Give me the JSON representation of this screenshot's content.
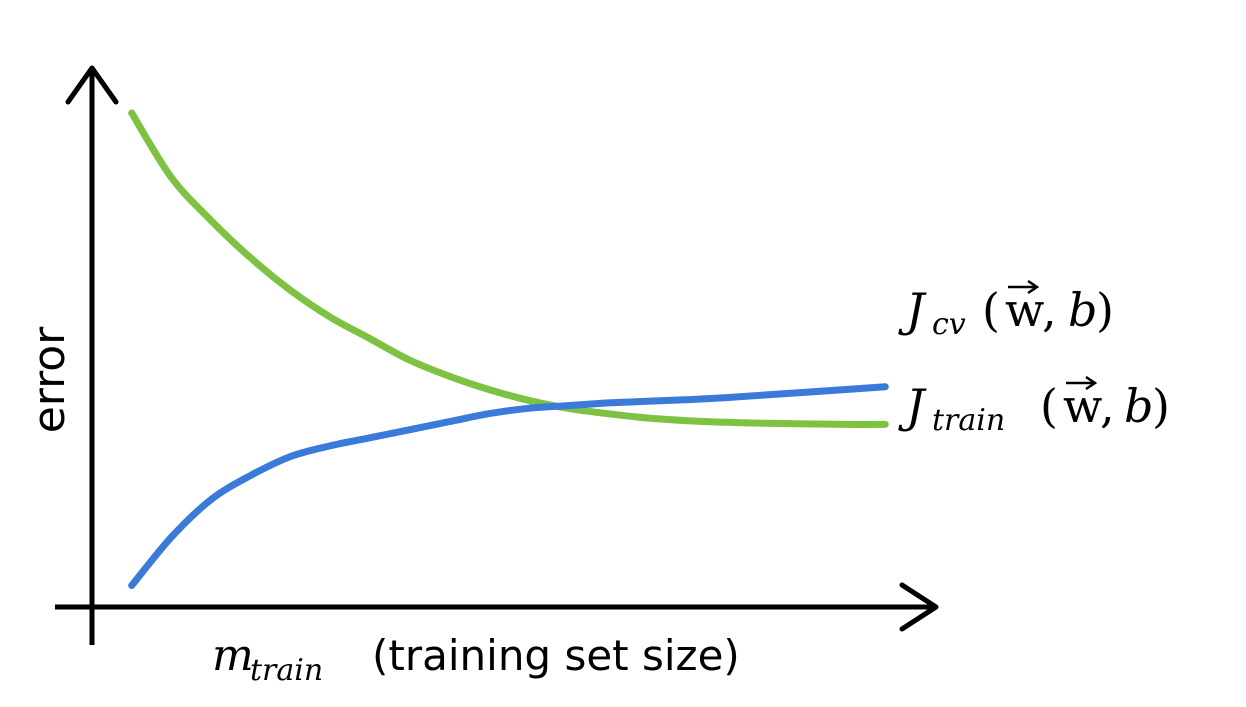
{
  "chart_data": {
    "type": "line",
    "title": "",
    "xlabel": {
      "symbol_main": "m",
      "symbol_subscript": "train",
      "text": "(training set size)"
    },
    "ylabel": "error",
    "grid": false,
    "series": [
      {
        "name": "J_cv(w,b)",
        "label": {
          "main": "J",
          "subscript": "cv",
          "args": [
            "(",
            "w",
            ", ",
            "b",
            ")"
          ]
        },
        "color": "#7dc242",
        "x": [
          0.05,
          0.1,
          0.15,
          0.2,
          0.25,
          0.3,
          0.35,
          0.4,
          0.45,
          0.5,
          0.55,
          0.6,
          0.65,
          0.7,
          0.75,
          0.8,
          0.85,
          0.9,
          0.95,
          1.0
        ],
        "values": [
          0.92,
          0.8,
          0.72,
          0.65,
          0.59,
          0.54,
          0.5,
          0.46,
          0.43,
          0.405,
          0.385,
          0.37,
          0.36,
          0.352,
          0.347,
          0.344,
          0.342,
          0.341,
          0.34,
          0.34
        ]
      },
      {
        "name": "J_train(w,b)",
        "label": {
          "main": "J",
          "subscript": "train",
          "args": [
            "(",
            "w",
            ", ",
            "b",
            ")"
          ]
        },
        "color": "#3a7ad8",
        "x": [
          0.05,
          0.1,
          0.15,
          0.2,
          0.25,
          0.3,
          0.35,
          0.4,
          0.45,
          0.5,
          0.55,
          0.6,
          0.65,
          0.7,
          0.75,
          0.8,
          0.85,
          0.9,
          0.95,
          1.0
        ],
        "values": [
          0.04,
          0.13,
          0.2,
          0.245,
          0.28,
          0.3,
          0.315,
          0.33,
          0.345,
          0.36,
          0.37,
          0.375,
          0.38,
          0.383,
          0.386,
          0.39,
          0.395,
          0.4,
          0.405,
          0.41
        ]
      }
    ],
    "axes": {
      "x_arrow": true,
      "y_arrow": true,
      "xlim": [
        0,
        1.05
      ],
      "ylim": [
        0,
        1.0
      ],
      "ticks": false
    }
  }
}
